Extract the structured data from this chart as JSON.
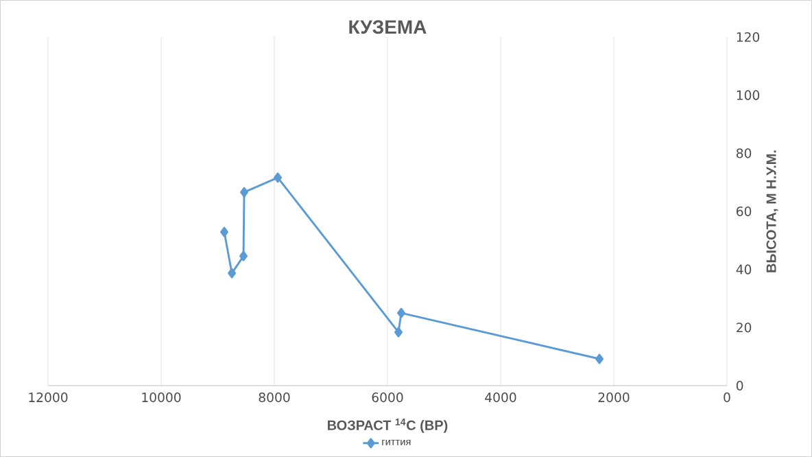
{
  "chart_data": {
    "type": "line",
    "title": "КУЗЕМА",
    "xlabel": "ВОЗРАСТ $^{14}$С (ВР)",
    "ylabel": "ВЫСОТА, М  Н.У.М.",
    "xlim": [
      12000,
      0
    ],
    "xticks": [
      12000,
      10000,
      8000,
      6000,
      4000,
      2000,
      0
    ],
    "ylim": [
      0,
      120
    ],
    "yticks": [
      0,
      20,
      40,
      60,
      80,
      100,
      120
    ],
    "grid": "x",
    "legend": "bottom",
    "marker": "diamond",
    "line_style": "solid",
    "series": [
      {
        "name": "гиттия",
        "color": "#5b9bd5",
        "x": [
          8885,
          8750,
          8545,
          8533,
          7939,
          5806,
          5757,
          2254
        ],
        "values": [
          52.9,
          38.7,
          44.6,
          66.6,
          71.6,
          18.4,
          25.0,
          9.2
        ]
      }
    ]
  }
}
